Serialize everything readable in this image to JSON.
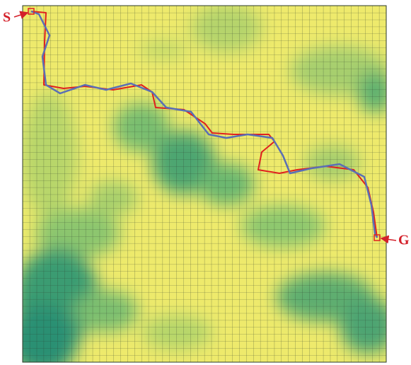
{
  "labels": {
    "start": "S",
    "goal": "G"
  }
}
